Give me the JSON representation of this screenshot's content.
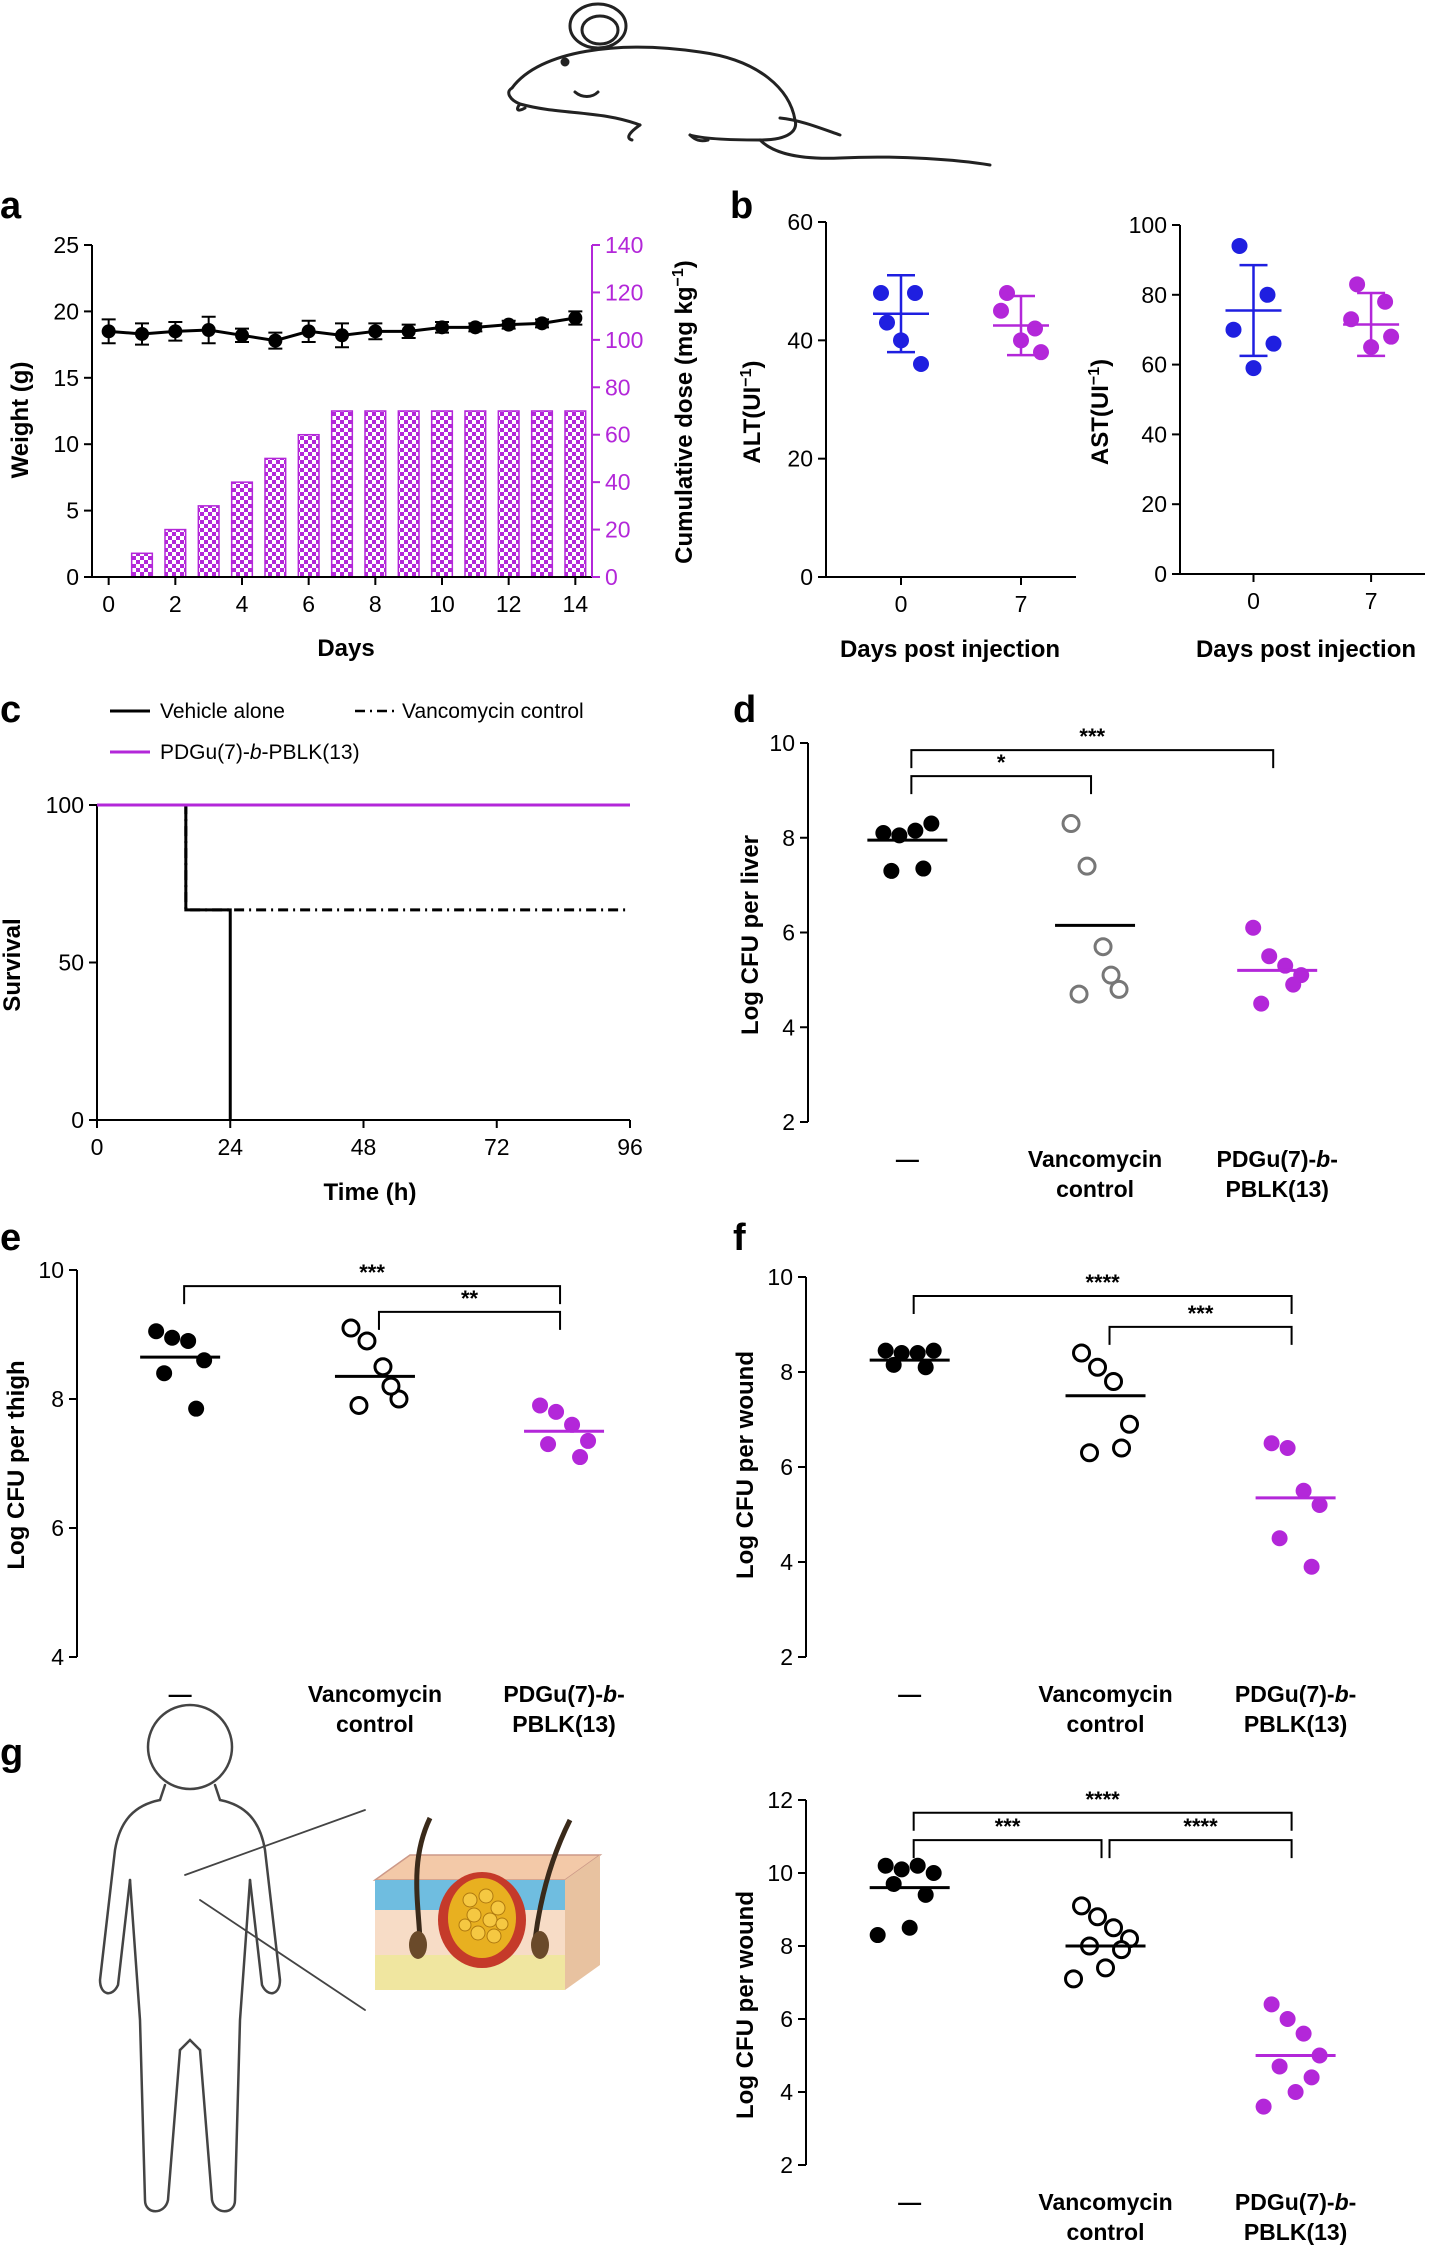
{
  "colors": {
    "black": "#000000",
    "blue": "#1f1fe0",
    "magenta": "#b327d9",
    "gray": "#777777"
  },
  "illustrations": {
    "mouse": "mouse-drawing-icon",
    "human": "human-outline-icon",
    "skin": "skin-wound-section-icon"
  },
  "chart_data": [
    {
      "id": "a",
      "panel_label": "a",
      "type": "line+bar",
      "title": "",
      "xlabel": "Days",
      "ylabel": "Weight (g)",
      "y2label": "Cumulative dose (mg kg",
      "y2label_sup": "−1",
      "y2label_tail": ")",
      "xlim": [
        -0.5,
        14.5
      ],
      "ylim": [
        0,
        25
      ],
      "y2lim": [
        0,
        140
      ],
      "xticks": [
        "0",
        "2",
        "4",
        "6",
        "8",
        "10",
        "12",
        "14"
      ],
      "yticks": [
        "0",
        "5",
        "10",
        "15",
        "20",
        "25"
      ],
      "y2ticks": [
        "0",
        "20",
        "40",
        "60",
        "80",
        "100",
        "120",
        "140"
      ],
      "weight": {
        "x": [
          0,
          1,
          2,
          3,
          4,
          5,
          6,
          7,
          8,
          9,
          10,
          11,
          12,
          13,
          14
        ],
        "y": [
          18.5,
          18.3,
          18.5,
          18.6,
          18.2,
          17.8,
          18.5,
          18.2,
          18.5,
          18.5,
          18.8,
          18.8,
          19.0,
          19.1,
          19.5
        ],
        "err": [
          0.9,
          0.8,
          0.7,
          1.0,
          0.5,
          0.6,
          0.8,
          0.9,
          0.6,
          0.5,
          0.4,
          0.3,
          0.3,
          0.3,
          0.5
        ]
      },
      "dose": {
        "x": [
          1,
          2,
          3,
          4,
          5,
          6,
          7,
          8,
          9,
          10,
          11,
          12,
          13,
          14
        ],
        "y": [
          10,
          20,
          30,
          40,
          50,
          60,
          70,
          70,
          70,
          70,
          70,
          70,
          70,
          70
        ]
      }
    },
    {
      "id": "b1",
      "panel_label": "b",
      "type": "scatter",
      "ylabel": "ALT(UI",
      "ylabel_sup": "−1",
      "ylabel_tail": ")",
      "xlabel": "Days post injection",
      "categories": [
        "0",
        "7"
      ],
      "ylim": [
        0,
        60
      ],
      "yticks": [
        "0",
        "20",
        "40",
        "60"
      ],
      "groups": [
        {
          "name": "0",
          "color": "blue",
          "points": [
            43,
            48,
            48,
            36,
            40
          ],
          "mean": 44.5,
          "sd": 6.5
        },
        {
          "name": "7",
          "color": "magenta",
          "points": [
            48,
            42,
            45,
            38,
            40
          ],
          "mean": 42.5,
          "sd": 5.0
        }
      ]
    },
    {
      "id": "b2",
      "type": "scatter",
      "ylabel": "AST(UI",
      "ylabel_sup": "−1",
      "ylabel_tail": ")",
      "xlabel": "Days post injection",
      "categories": [
        "0",
        "7"
      ],
      "ylim": [
        0,
        100
      ],
      "yticks": [
        "0",
        "20",
        "40",
        "60",
        "80",
        "100"
      ],
      "groups": [
        {
          "name": "0",
          "color": "blue",
          "points": [
            94,
            80,
            70,
            66,
            59
          ],
          "mean": 75.5,
          "sd": 13
        },
        {
          "name": "7",
          "color": "magenta",
          "points": [
            83,
            78,
            73,
            68,
            65
          ],
          "mean": 71.5,
          "sd": 9
        }
      ]
    },
    {
      "id": "c",
      "panel_label": "c",
      "type": "line",
      "xlabel": "Time (h)",
      "ylabel": "Survival",
      "xlim": [
        0,
        96
      ],
      "ylim": [
        0,
        100
      ],
      "xticks": [
        "0",
        "24",
        "48",
        "72",
        "96"
      ],
      "yticks": [
        "0",
        "50",
        "100"
      ],
      "legend": {
        "vehicle": "Vehicle alone",
        "vanco": "Vancomycin control",
        "pdgu_a": "PDGu(7)-",
        "pdgu_b": "b",
        "pdgu_c": "-PBLK(13)"
      },
      "series": [
        {
          "name": "Vehicle alone",
          "color": "black",
          "style": "solid",
          "x": [
            0,
            16,
            16,
            24,
            24
          ],
          "y": [
            100,
            100,
            66.7,
            66.7,
            0
          ]
        },
        {
          "name": "Vancomycin control",
          "color": "black",
          "style": "dashdot",
          "x": [
            0,
            16,
            16,
            96
          ],
          "y": [
            100,
            100,
            66.7,
            66.7
          ]
        },
        {
          "name": "PDGu(7)-b-PBLK(13)",
          "color": "magenta",
          "style": "solid",
          "x": [
            0,
            96
          ],
          "y": [
            100,
            100
          ]
        }
      ]
    },
    {
      "id": "d",
      "panel_label": "d",
      "type": "scatter",
      "ylabel": "Log CFU per liver",
      "ylim": [
        2,
        10
      ],
      "yticks": [
        "2",
        "4",
        "6",
        "8",
        "10"
      ],
      "cat_labels": [
        {
          "l1": "—",
          "l2": ""
        },
        {
          "l1": "Vancomycin",
          "l2": "control"
        },
        {
          "l1a": "PDGu(7)-",
          "l1b": "b",
          "l1c": "-",
          "l2": "PBLK(13)"
        }
      ],
      "groups": [
        {
          "color": "black",
          "open": false,
          "points": [
            8.1,
            8.05,
            8.15,
            8.3,
            7.3,
            7.35
          ],
          "mean": 7.95
        },
        {
          "color": "gray",
          "open": true,
          "points": [
            8.3,
            7.4,
            5.7,
            4.8,
            4.7,
            5.1
          ],
          "mean": 6.15
        },
        {
          "color": "magenta",
          "open": false,
          "points": [
            6.1,
            5.5,
            5.3,
            5.1,
            4.5,
            4.9
          ],
          "mean": 5.2
        }
      ],
      "sig": [
        {
          "from": 0,
          "to": 1,
          "label": "*",
          "y": 9.3
        },
        {
          "from": 0,
          "to": 2,
          "label": "***",
          "y": 9.85
        }
      ]
    },
    {
      "id": "e",
      "panel_label": "e",
      "type": "scatter",
      "ylabel": "Log CFU per thigh",
      "ylim": [
        4,
        10
      ],
      "yticks": [
        "4",
        "6",
        "8",
        "10"
      ],
      "cat_labels": [
        {
          "l1": "—",
          "l2": ""
        },
        {
          "l1": "Vancomycin",
          "l2": "control"
        },
        {
          "l1a": "PDGu(7)-",
          "l1b": "b",
          "l1c": "-",
          "l2": "PBLK(13)"
        }
      ],
      "groups": [
        {
          "color": "black",
          "open": false,
          "points": [
            9.05,
            8.95,
            8.9,
            8.6,
            8.4,
            7.85
          ],
          "mean": 8.65
        },
        {
          "color": "black",
          "open": true,
          "points": [
            9.1,
            8.9,
            8.5,
            8.0,
            7.9,
            8.2
          ],
          "mean": 8.35
        },
        {
          "color": "magenta",
          "open": false,
          "points": [
            7.9,
            7.8,
            7.6,
            7.35,
            7.3,
            7.1
          ],
          "mean": 7.5
        }
      ],
      "sig": [
        {
          "from": 0,
          "to": 2,
          "label": "***",
          "y": 9.75
        },
        {
          "from": 1,
          "to": 2,
          "label": "**",
          "y": 9.35
        }
      ]
    },
    {
      "id": "f",
      "panel_label": "f",
      "type": "scatter",
      "ylabel": "Log CFU per wound",
      "ylim": [
        2,
        10
      ],
      "yticks": [
        "2",
        "4",
        "6",
        "8",
        "10"
      ],
      "cat_labels": [
        {
          "l1": "—",
          "l2": ""
        },
        {
          "l1": "Vancomycin",
          "l2": "control"
        },
        {
          "l1a": "PDGu(7)-",
          "l1b": "b",
          "l1c": "-",
          "l2": "PBLK(13)"
        }
      ],
      "groups": [
        {
          "color": "black",
          "open": false,
          "points": [
            8.45,
            8.4,
            8.4,
            8.45,
            8.15,
            8.1
          ],
          "mean": 8.25
        },
        {
          "color": "black",
          "open": true,
          "points": [
            8.4,
            8.1,
            7.8,
            6.9,
            6.3,
            6.4
          ],
          "mean": 7.5
        },
        {
          "color": "magenta",
          "open": false,
          "points": [
            6.5,
            6.4,
            5.5,
            5.2,
            4.5,
            3.9
          ],
          "mean": 5.35
        }
      ],
      "sig": [
        {
          "from": 0,
          "to": 2,
          "label": "****",
          "y": 9.6
        },
        {
          "from": 1,
          "to": 2,
          "label": "***",
          "y": 8.95
        }
      ]
    },
    {
      "id": "g",
      "panel_label": "g",
      "type": "scatter",
      "ylabel": "Log CFU per wound",
      "ylim": [
        2,
        12
      ],
      "yticks": [
        "2",
        "4",
        "6",
        "8",
        "10",
        "12"
      ],
      "cat_labels": [
        {
          "l1": "—",
          "l2": ""
        },
        {
          "l1": "Vancomycin",
          "l2": "control"
        },
        {
          "l1a": "PDGu(7)-",
          "l1b": "b",
          "l1c": "-",
          "l2": "PBLK(13)"
        }
      ],
      "groups": [
        {
          "color": "black",
          "open": false,
          "points": [
            10.2,
            10.1,
            10.2,
            10.0,
            9.7,
            9.4,
            8.5,
            8.3
          ],
          "mean": 9.6
        },
        {
          "color": "black",
          "open": true,
          "points": [
            9.1,
            8.8,
            8.5,
            8.2,
            8.0,
            7.9,
            7.4,
            7.1
          ],
          "mean": 8.0
        },
        {
          "color": "magenta",
          "open": false,
          "points": [
            6.4,
            6.0,
            5.6,
            5.0,
            4.7,
            4.4,
            4.0,
            3.6
          ],
          "mean": 5.0
        }
      ],
      "sig": [
        {
          "from": 0,
          "to": 1,
          "label": "***",
          "y": 10.9
        },
        {
          "from": 1,
          "to": 2,
          "label": "****",
          "y": 10.9
        },
        {
          "from": 0,
          "to": 2,
          "label": "****",
          "y": 11.65
        }
      ]
    }
  ]
}
